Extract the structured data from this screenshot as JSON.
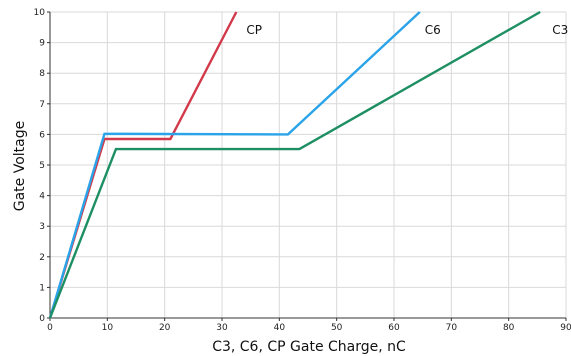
{
  "chart_data": {
    "type": "line",
    "title": "",
    "xlabel": "C3, C6, CP Gate Charge, nC",
    "ylabel": "Gate Voltage",
    "xlim": [
      0,
      90
    ],
    "ylim": [
      0,
      10
    ],
    "xticks": [
      "0",
      "10",
      "20",
      "30",
      "40",
      "50",
      "60",
      "70",
      "80",
      "90"
    ],
    "yticks": [
      "0",
      "1",
      "2",
      "3",
      "4",
      "5",
      "6",
      "7",
      "8",
      "9",
      "10"
    ],
    "grid": true,
    "legend": "none",
    "series": [
      {
        "name": "CP",
        "color": "#d23a4b",
        "points": [
          [
            0,
            0
          ],
          [
            9.5,
            5.85
          ],
          [
            21,
            5.85
          ],
          [
            32.5,
            10
          ]
        ]
      },
      {
        "name": "C6",
        "color": "#2aa3e8",
        "points": [
          [
            0,
            0
          ],
          [
            9.5,
            6.02
          ],
          [
            41.5,
            6.0
          ],
          [
            64.5,
            10
          ]
        ]
      },
      {
        "name": "C3",
        "color": "#1d8f63",
        "points": [
          [
            0,
            0
          ],
          [
            11.5,
            5.52
          ],
          [
            43.5,
            5.52
          ],
          [
            85.5,
            10
          ]
        ]
      }
    ]
  }
}
